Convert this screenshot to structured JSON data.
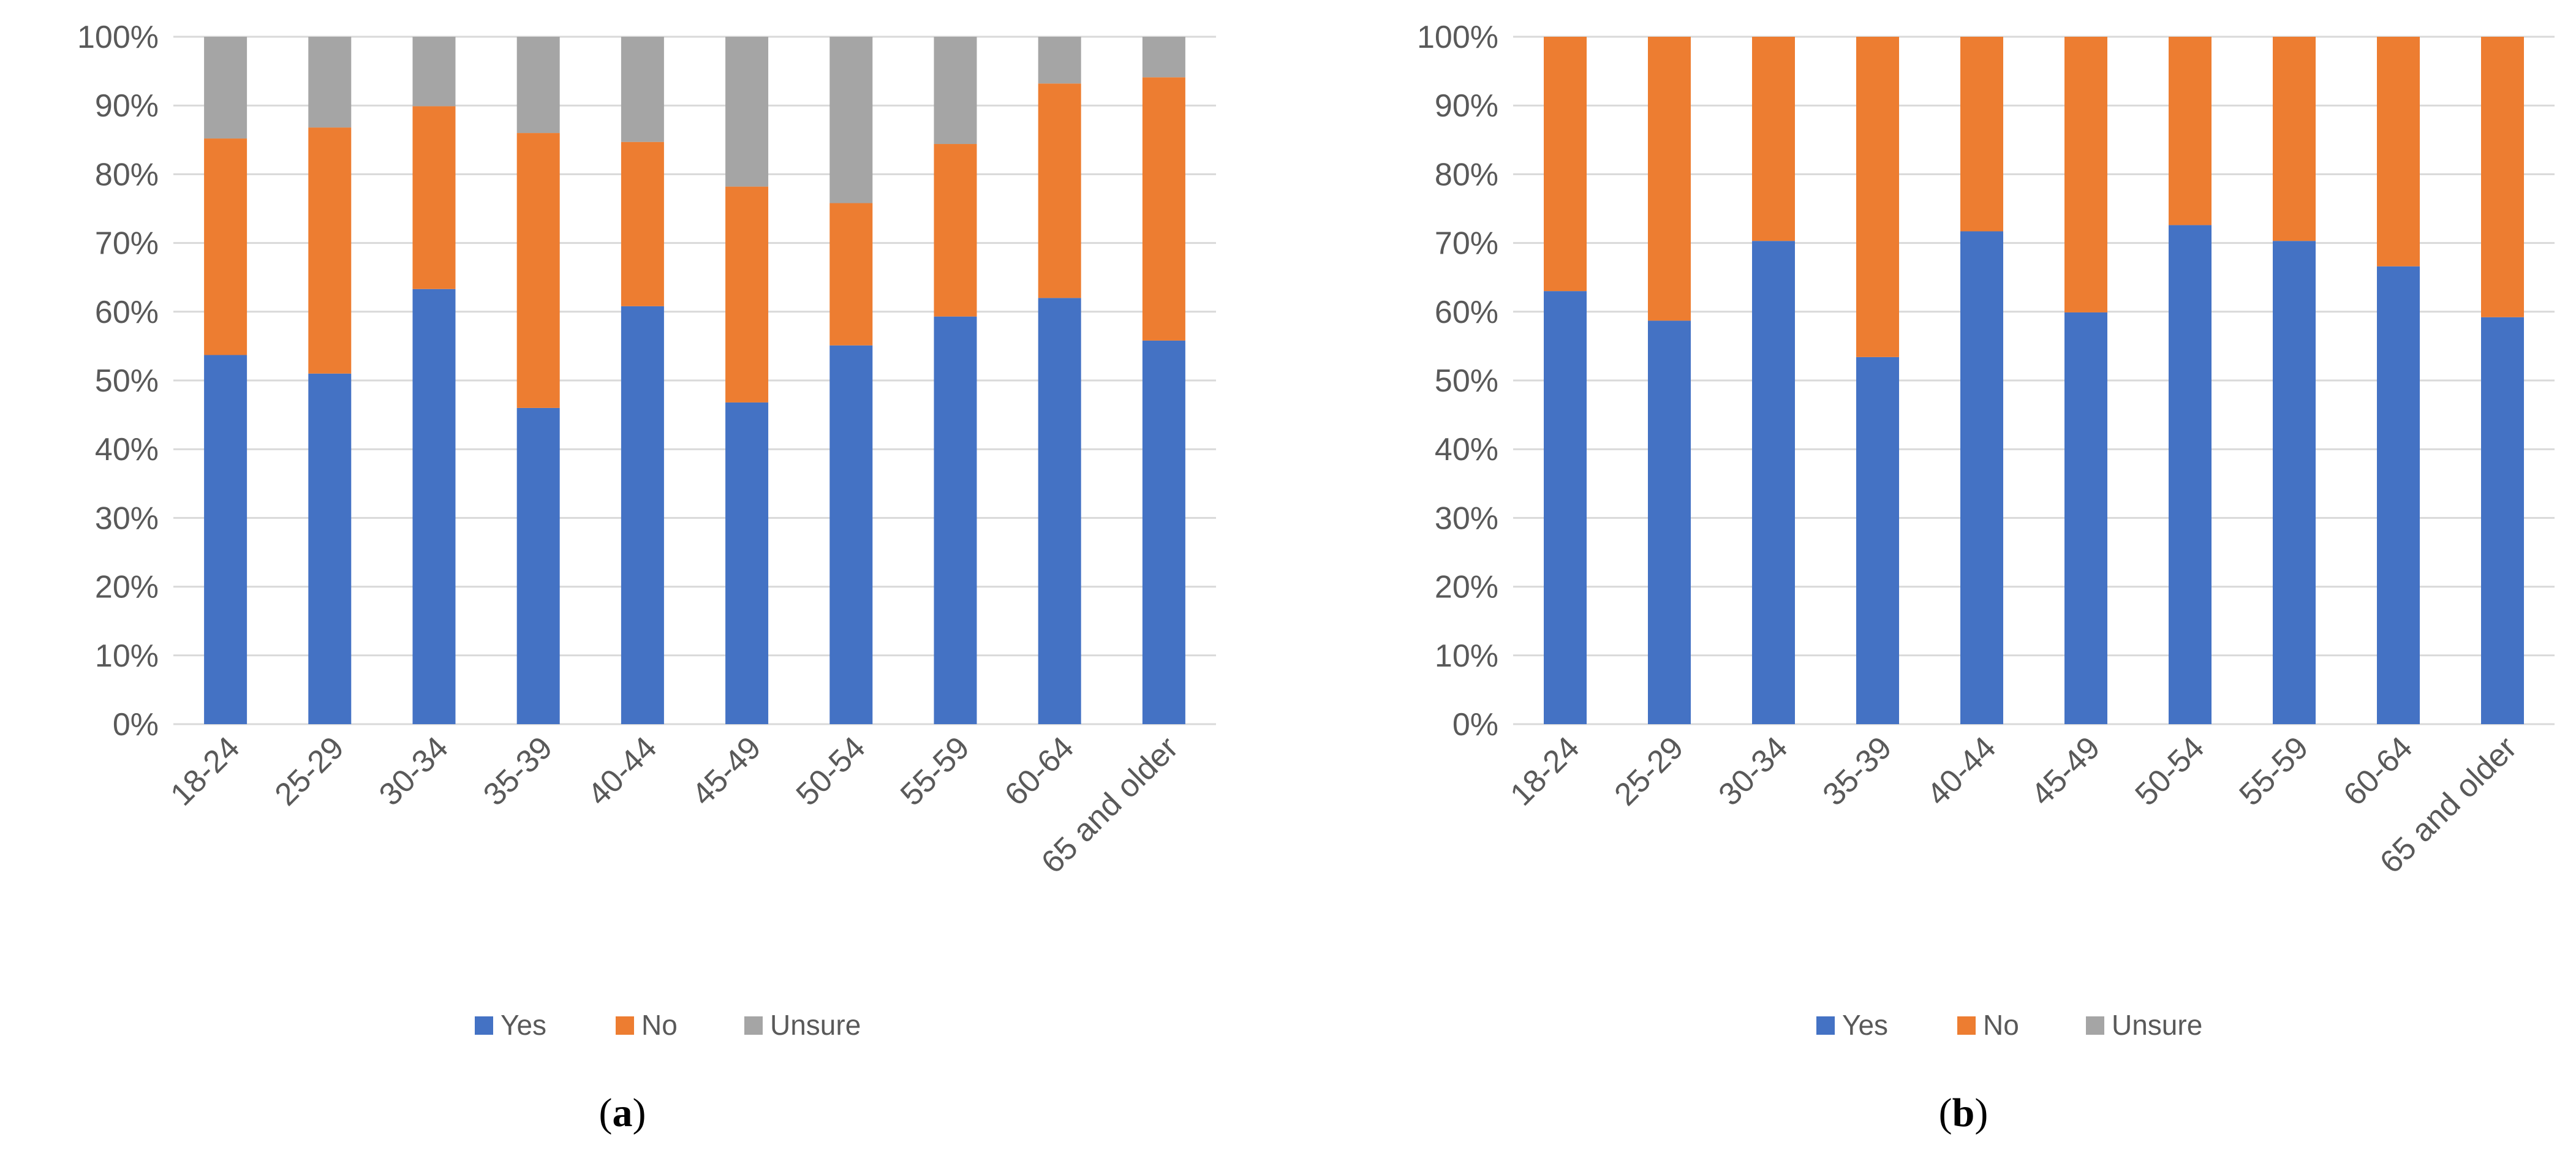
{
  "colors": {
    "yes": "#4472C4",
    "no": "#ED7D31",
    "unsure": "#A5A5A5",
    "grid": "#D9D9D9",
    "text": "#595959"
  },
  "chart_data": [
    {
      "type": "bar",
      "stacked": true,
      "panel_label": "a",
      "title": "",
      "xlabel": "",
      "ylabel": "",
      "ylim": [
        0,
        100
      ],
      "y_ticks": [
        "0%",
        "10%",
        "20%",
        "30%",
        "40%",
        "50%",
        "60%",
        "70%",
        "80%",
        "90%",
        "100%"
      ],
      "grid": true,
      "legend_position": "bottom",
      "categories": [
        "18-24",
        "25-29",
        "30-34",
        "35-39",
        "40-44",
        "45-49",
        "50-54",
        "55-59",
        "60-64",
        "65 and older"
      ],
      "series": [
        {
          "name": "Yes",
          "color": "#4472C4",
          "values": [
            53.7,
            51.0,
            63.3,
            46.0,
            60.8,
            46.8,
            55.1,
            59.3,
            62.0,
            55.8
          ]
        },
        {
          "name": "No",
          "color": "#ED7D31",
          "values": [
            31.5,
            35.8,
            26.6,
            40.0,
            23.9,
            31.4,
            20.7,
            25.1,
            31.2,
            38.3
          ]
        },
        {
          "name": "Unsure",
          "color": "#A5A5A5",
          "values": [
            14.8,
            13.2,
            10.1,
            14.0,
            15.3,
            21.8,
            24.2,
            15.6,
            6.8,
            5.9
          ]
        }
      ]
    },
    {
      "type": "bar",
      "stacked": true,
      "panel_label": "b",
      "title": "",
      "xlabel": "",
      "ylabel": "",
      "ylim": [
        0,
        100
      ],
      "y_ticks": [
        "0%",
        "10%",
        "20%",
        "30%",
        "40%",
        "50%",
        "60%",
        "70%",
        "80%",
        "90%",
        "100%"
      ],
      "grid": true,
      "legend_position": "bottom",
      "categories": [
        "18-24",
        "25-29",
        "30-34",
        "35-39",
        "40-44",
        "45-49",
        "50-54",
        "55-59",
        "60-64",
        "65 and older"
      ],
      "series": [
        {
          "name": "Yes",
          "color": "#4472C4",
          "values": [
            63.0,
            58.7,
            70.3,
            53.4,
            71.7,
            59.9,
            72.6,
            70.3,
            66.6,
            59.2
          ]
        },
        {
          "name": "No",
          "color": "#ED7D31",
          "values": [
            37.0,
            41.3,
            29.7,
            46.6,
            28.3,
            40.1,
            27.4,
            29.7,
            33.4,
            40.8
          ]
        },
        {
          "name": "Unsure",
          "color": "#A5A5A5",
          "values": [
            0,
            0,
            0,
            0,
            0,
            0,
            0,
            0,
            0,
            0
          ]
        }
      ]
    }
  ]
}
